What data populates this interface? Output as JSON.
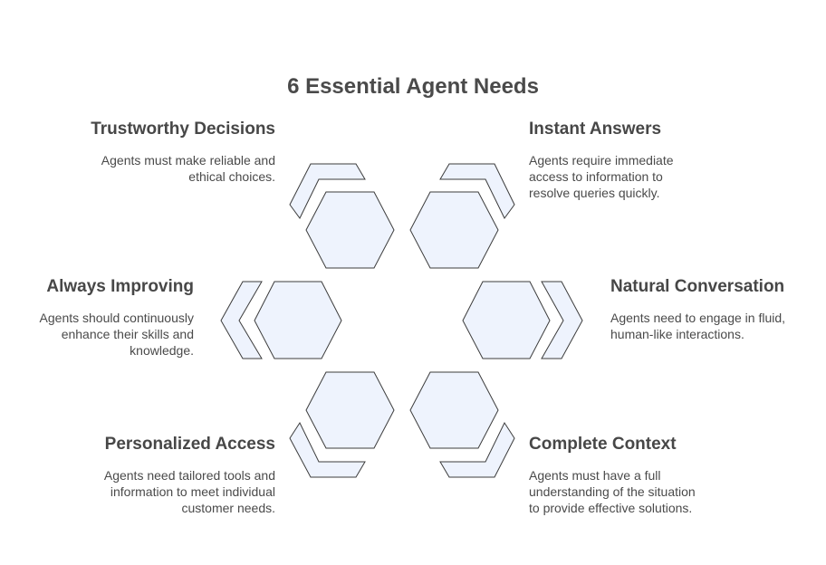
{
  "title": "6 Essential Agent Needs",
  "colors": {
    "fill": "#eef3fd",
    "stroke": "#3c3c3c",
    "heading": "#474747",
    "text": "#4a4a4a"
  },
  "needs": [
    {
      "id": "trustworthy",
      "heading": "Trustworthy Decisions",
      "desc_lines": [
        "Agents must make reliable and",
        "ethical choices."
      ]
    },
    {
      "id": "instant",
      "heading": "Instant Answers",
      "desc_lines": [
        "Agents require immediate",
        "access to information to",
        "resolve queries quickly."
      ]
    },
    {
      "id": "improving",
      "heading": "Always Improving",
      "desc_lines": [
        "Agents should continuously",
        "enhance their skills and",
        "knowledge."
      ]
    },
    {
      "id": "natural",
      "heading": "Natural Conversation",
      "desc_lines": [
        "Agents need to engage in fluid,",
        "human-like interactions."
      ]
    },
    {
      "id": "personalized",
      "heading": "Personalized Access",
      "desc_lines": [
        "Agents need tailored tools and",
        "information to meet individual",
        "customer needs."
      ]
    },
    {
      "id": "context",
      "heading": "Complete Context",
      "desc_lines": [
        "Agents must have a full",
        "understanding of the situation",
        "to provide effective solutions."
      ]
    }
  ]
}
